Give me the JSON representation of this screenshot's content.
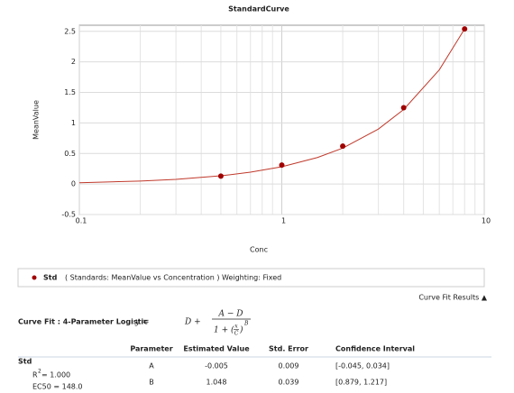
{
  "chart_data": {
    "type": "scatter",
    "title": "StandardCurve",
    "x_label": "Conc",
    "y_label": "MeanValue",
    "xlog": true,
    "xlim": [
      0.1,
      10
    ],
    "xticks": [
      0.1,
      1,
      10
    ],
    "xminorticks": [
      0.2,
      0.3,
      0.4,
      0.5,
      0.6,
      0.7,
      0.8,
      0.9,
      2,
      3,
      4,
      5,
      6,
      7,
      8,
      9
    ],
    "ylim": [
      -0.5,
      2.6
    ],
    "yticks": [
      -0.5,
      0,
      0.5,
      1,
      1.5,
      2,
      2.5
    ],
    "grid": true,
    "series": [
      {
        "name": "Std",
        "color": "#a00000",
        "x": [
          0.5,
          1,
          2,
          4,
          8
        ],
        "values": [
          0.13,
          0.31,
          0.62,
          1.25,
          2.54
        ]
      }
    ],
    "fit_curve": {
      "color": "#c0392b",
      "x": [
        0.1,
        0.2,
        0.3,
        0.5,
        0.7,
        1,
        1.5,
        2,
        3,
        4,
        6,
        8
      ],
      "values": [
        0.021,
        0.048,
        0.076,
        0.134,
        0.193,
        0.282,
        0.434,
        0.588,
        0.9,
        1.22,
        1.87,
        2.54
      ]
    },
    "legend_text": "( Standards: MeanValue vs Concentration )  Weighting: Fixed"
  },
  "results_toggle": "Curve Fit Results ▲",
  "fit": {
    "title": "Curve Fit : 4-Parameter Logistic",
    "formula": {
      "lhs": "y  =",
      "constant": "D  +",
      "numerator": "A − D",
      "denominator": "1 + (",
      "ratio_num": "x",
      "ratio_den": "C",
      "close": ")",
      "exponent": "B"
    }
  },
  "table": {
    "header": [
      "Parameter",
      "Estimated Value",
      "Std. Error",
      "Confidence Interval"
    ],
    "rows": [
      [
        "A",
        -0.005,
        0.009,
        "[-0.045, 0.034]"
      ],
      [
        "B",
        1.048,
        0.039,
        "[0.879, 1.217]"
      ]
    ]
  },
  "sample": {
    "name": "Std",
    "r2_base": "R",
    "r2_sup": "2",
    "r2_value": " = 1.000",
    "ec50": "EC50 = 148.0"
  }
}
